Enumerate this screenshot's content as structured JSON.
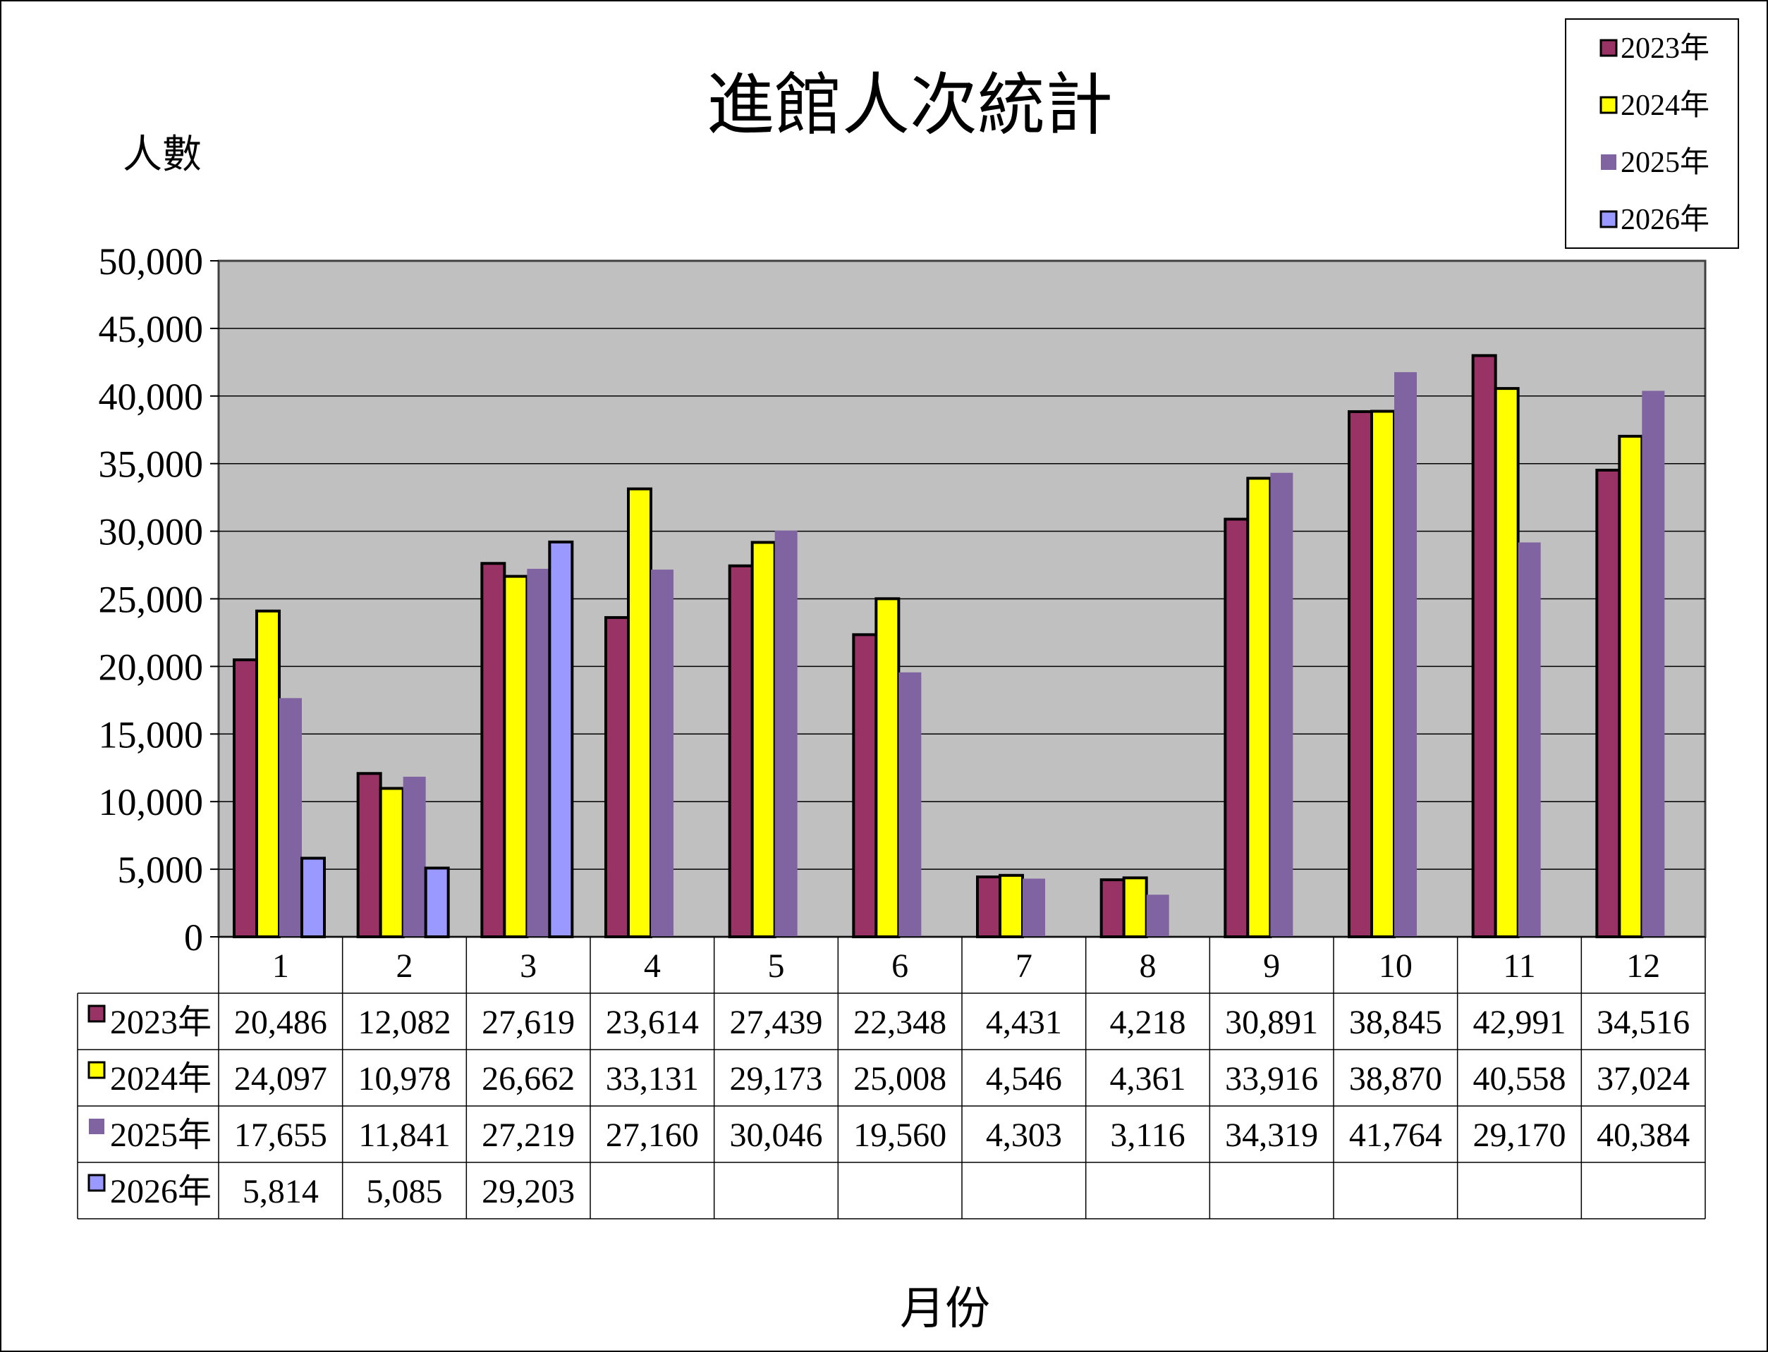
{
  "chart_data": {
    "type": "bar",
    "title": "進館人次統計",
    "ylabel": "人數",
    "xlabel": "月份",
    "categories": [
      "1",
      "2",
      "3",
      "4",
      "5",
      "6",
      "7",
      "8",
      "9",
      "10",
      "11",
      "12"
    ],
    "ylim": [
      0,
      50000
    ],
    "yticks": [
      0,
      5000,
      10000,
      15000,
      20000,
      25000,
      30000,
      35000,
      40000,
      45000,
      50000
    ],
    "ytick_labels": [
      "0",
      "5,000",
      "10,000",
      "15,000",
      "20,000",
      "25,000",
      "30,000",
      "35,000",
      "40,000",
      "45,000",
      "50,000"
    ],
    "grid": true,
    "legend_position": "top-right",
    "data_table": true,
    "series": [
      {
        "name": "2023年",
        "color": "#993366",
        "outlined": true,
        "values": [
          20486,
          12082,
          27619,
          23614,
          27439,
          22348,
          4431,
          4218,
          30891,
          38845,
          42991,
          34516
        ],
        "labels": [
          "20,486",
          "12,082",
          "27,619",
          "23,614",
          "27,439",
          "22,348",
          "4,431",
          "4,218",
          "30,891",
          "38,845",
          "42,991",
          "34,516"
        ]
      },
      {
        "name": "2024年",
        "color": "#FFFF00",
        "outlined": true,
        "values": [
          24097,
          10978,
          26662,
          33131,
          29173,
          25008,
          4546,
          4361,
          33916,
          38870,
          40558,
          37024
        ],
        "labels": [
          "24,097",
          "10,978",
          "26,662",
          "33,131",
          "29,173",
          "25,008",
          "4,546",
          "4,361",
          "33,916",
          "38,870",
          "40,558",
          "37,024"
        ]
      },
      {
        "name": "2025年",
        "color": "#8064A2",
        "outlined": false,
        "values": [
          17655,
          11841,
          27219,
          27160,
          30046,
          19560,
          4303,
          3116,
          34319,
          41764,
          29170,
          40384
        ],
        "labels": [
          "17,655",
          "11,841",
          "27,219",
          "27,160",
          "30,046",
          "19,560",
          "4,303",
          "3,116",
          "34,319",
          "41,764",
          "29,170",
          "40,384"
        ]
      },
      {
        "name": "2026年",
        "color": "#9999FF",
        "outlined": true,
        "values": [
          5814,
          5085,
          29203,
          null,
          null,
          null,
          null,
          null,
          null,
          null,
          null,
          null
        ],
        "labels": [
          "5,814",
          "5,085",
          "29,203",
          "",
          "",
          "",
          "",
          "",
          "",
          "",
          "",
          ""
        ]
      }
    ]
  },
  "colors": {
    "plot_background": "#C0C0C0",
    "grid": "#000000"
  }
}
